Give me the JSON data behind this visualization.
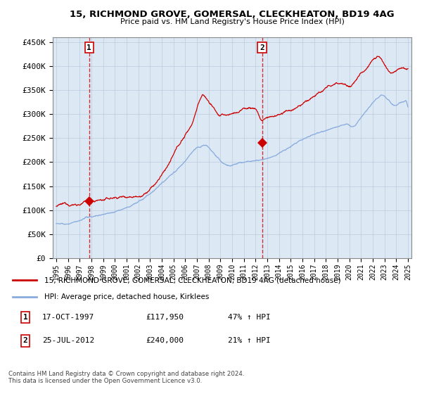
{
  "title1": "15, RICHMOND GROVE, GOMERSAL, CLECKHEATON, BD19 4AG",
  "title2": "Price paid vs. HM Land Registry's House Price Index (HPI)",
  "ylabel_ticks": [
    "£0",
    "£50K",
    "£100K",
    "£150K",
    "£200K",
    "£250K",
    "£300K",
    "£350K",
    "£400K",
    "£450K"
  ],
  "ytick_values": [
    0,
    50000,
    100000,
    150000,
    200000,
    250000,
    300000,
    350000,
    400000,
    450000
  ],
  "ylim": [
    0,
    460000
  ],
  "xlim_start": 1994.7,
  "xlim_end": 2025.3,
  "sale1_x": 1997.8,
  "sale1_y": 117950,
  "sale1_label": "1",
  "sale2_x": 2012.55,
  "sale2_y": 240000,
  "sale2_label": "2",
  "line_color_red": "#cc0000",
  "line_color_blue": "#88aadd",
  "plot_bg_color": "#dce9f5",
  "legend_red": "15, RICHMOND GROVE, GOMERSAL, CLECKHEATON, BD19 4AG (detached house)",
  "legend_blue": "HPI: Average price, detached house, Kirklees",
  "ann1_date": "17-OCT-1997",
  "ann1_price": "£117,950",
  "ann1_hpi": "47% ↑ HPI",
  "ann2_date": "25-JUL-2012",
  "ann2_price": "£240,000",
  "ann2_hpi": "21% ↑ HPI",
  "footer": "Contains HM Land Registry data © Crown copyright and database right 2024.\nThis data is licensed under the Open Government Licence v3.0.",
  "bg_color": "#ffffff",
  "grid_color": "#bbccdd"
}
